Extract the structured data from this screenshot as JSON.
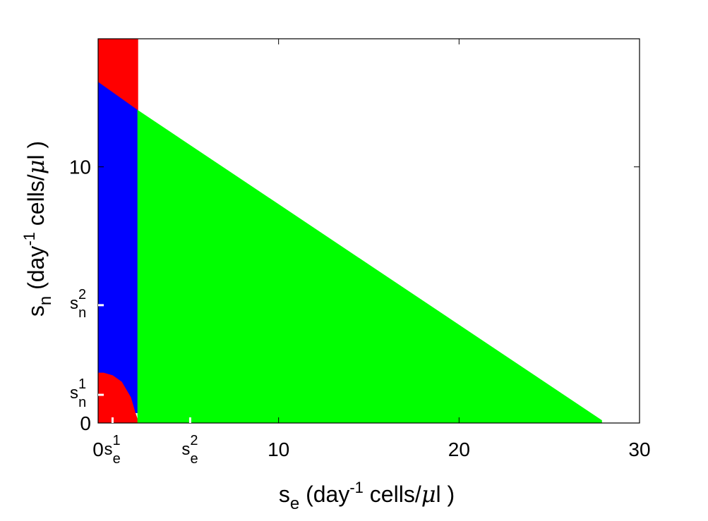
{
  "chart_data": {
    "type": "area",
    "x_axis": {
      "range": [
        0,
        30
      ],
      "ticks": [
        0,
        10,
        20,
        30
      ],
      "tick_labels": [
        "0",
        "10",
        "20",
        "30"
      ],
      "special_ticks": [
        {
          "value": 0.8,
          "base": "s",
          "sub": "e",
          "sup": "1"
        },
        {
          "value": 5.1,
          "base": "s",
          "sub": "e",
          "sup": "2"
        }
      ],
      "label": {
        "base": "s",
        "sub": "e",
        "unit_open": " (day",
        "unit_exp": "-1",
        "unit_rest": " cells/",
        "mu": "μ",
        "unit_close": "l )"
      }
    },
    "y_axis": {
      "range": [
        0,
        15
      ],
      "ticks": [
        0,
        10
      ],
      "tick_labels": [
        "0",
        "10"
      ],
      "special_ticks": [
        {
          "value": 1.1,
          "base": "s",
          "sub": "n",
          "sup": "1"
        },
        {
          "value": 4.6,
          "base": "s",
          "sub": "n",
          "sup": "2"
        }
      ],
      "label": {
        "base": "s",
        "sub": "n",
        "unit_open": " (day",
        "unit_exp": "-1",
        "unit_rest": " cells/",
        "mu": "μ",
        "unit_close": "l )"
      }
    },
    "regions": [
      {
        "name": "",
        "color": "#ff0000",
        "polygon": [
          [
            0,
            15
          ],
          [
            2.2,
            15
          ],
          [
            2.2,
            12.2
          ],
          [
            0,
            13.3
          ]
        ]
      },
      {
        "name": "",
        "color": "#0000ff",
        "polygon": [
          [
            0,
            13.3
          ],
          [
            2.2,
            12.2
          ],
          [
            2.2,
            0.4
          ],
          [
            2.05,
            0.4
          ],
          [
            1.8,
            1.0
          ],
          [
            1.3,
            1.6
          ],
          [
            0.8,
            1.85
          ],
          [
            0.3,
            1.95
          ],
          [
            0,
            1.95
          ]
        ]
      },
      {
        "name": "",
        "color": "#ff0000",
        "polygon": [
          [
            0,
            1.95
          ],
          [
            0.3,
            1.95
          ],
          [
            0.8,
            1.85
          ],
          [
            1.3,
            1.6
          ],
          [
            1.8,
            1.0
          ],
          [
            2.05,
            0.4
          ],
          [
            2.2,
            0.1
          ],
          [
            2.2,
            0
          ],
          [
            0,
            0
          ]
        ]
      },
      {
        "name": "",
        "color": "#00ff00",
        "polygon": [
          [
            2.2,
            12.2
          ],
          [
            27.9,
            0.1
          ],
          [
            27.9,
            0
          ],
          [
            2.2,
            0
          ]
        ]
      }
    ],
    "grid": false
  }
}
